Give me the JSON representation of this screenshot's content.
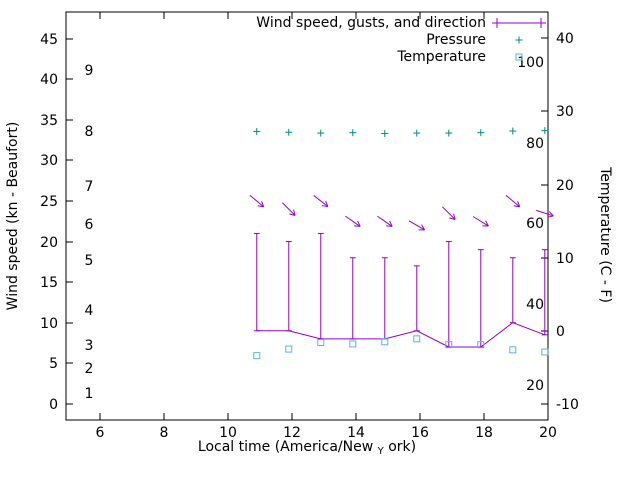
{
  "chart_data": {
    "type": "line",
    "title": "",
    "x_axis": {
      "label_prefix": "Local time (America/New",
      "label_sub": "Y",
      "label_suffix": "ork)",
      "full_label": "Local time (America/New_York)",
      "ticks": [
        6,
        8,
        10,
        12,
        14,
        16,
        18,
        20
      ],
      "range": [
        4.94,
        20
      ]
    },
    "left_axis": {
      "label": "Wind speed (kn - Beaufort)",
      "kn_ticks": [
        0,
        5,
        10,
        15,
        20,
        25,
        30,
        35,
        40,
        45
      ],
      "beaufort_labels": [
        "1",
        "2",
        "3",
        "4",
        "5",
        "6",
        "7",
        "8",
        "9"
      ],
      "beaufort_kn": [
        1.3,
        4.4,
        7.3,
        11.6,
        17.7,
        22.2,
        26.9,
        33.6,
        41.2
      ],
      "range": [
        -2,
        48.3
      ]
    },
    "right_axis": {
      "label": "Temperature (C - F)",
      "ticks": [
        -10,
        0,
        10,
        20,
        30,
        40
      ],
      "range": [
        -12.2,
        43.6
      ]
    },
    "pressure_axis": {
      "ticks": [
        20,
        40,
        60,
        80,
        100
      ],
      "range": [
        11.3,
        112.4
      ]
    },
    "x": [
      10.9,
      11.9,
      12.9,
      13.9,
      14.9,
      15.9,
      16.9,
      17.9,
      18.9,
      19.9
    ],
    "series": {
      "wind": {
        "label": "Wind speed, gusts, and direction",
        "color": "#9400d3",
        "speed_kn": [
          9,
          9,
          8,
          8,
          8,
          9,
          7,
          7,
          10,
          8.5
        ],
        "gust_kn": [
          21,
          20,
          21,
          18,
          18,
          17,
          20,
          19,
          18,
          19
        ],
        "arrow_angle_deg": [
          40,
          45,
          38,
          35,
          35,
          30,
          45,
          32,
          40,
          18
        ],
        "arrow_center_kn": [
          25,
          24,
          25,
          22.5,
          22.5,
          22,
          23.5,
          22.5,
          25,
          23.5
        ]
      },
      "pressure": {
        "label": "Pressure",
        "color": "#008b8b",
        "values": [
          82.8,
          82.6,
          82.4,
          82.5,
          82.3,
          82.4,
          82.4,
          82.5,
          82.9,
          83.0
        ]
      },
      "temperature": {
        "label": "Temperature",
        "color": "#56b4e9",
        "values_c": [
          -3.4,
          -2.5,
          -1.6,
          -1.8,
          -1.5,
          -1.1,
          -1.9,
          -1.9,
          -2.6,
          -2.9
        ]
      }
    }
  }
}
